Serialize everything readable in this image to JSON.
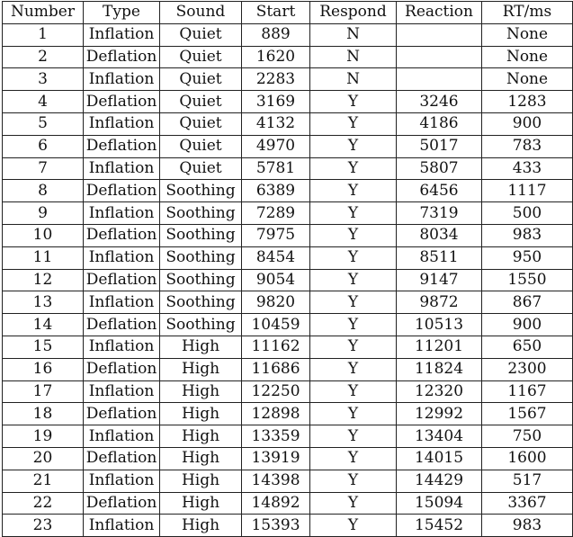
{
  "table": {
    "columns": [
      "Number",
      "Type",
      "Sound",
      "Start",
      "Respond",
      "Reaction",
      "RT/ms"
    ],
    "rows": [
      [
        "1",
        "Inflation",
        "Quiet",
        "889",
        "N",
        "",
        "None"
      ],
      [
        "2",
        "Deflation",
        "Quiet",
        "1620",
        "N",
        "",
        "None"
      ],
      [
        "3",
        "Inflation",
        "Quiet",
        "2283",
        "N",
        "",
        "None"
      ],
      [
        "4",
        "Deflation",
        "Quiet",
        "3169",
        "Y",
        "3246",
        "1283"
      ],
      [
        "5",
        "Inflation",
        "Quiet",
        "4132",
        "Y",
        "4186",
        "900"
      ],
      [
        "6",
        "Deflation",
        "Quiet",
        "4970",
        "Y",
        "5017",
        "783"
      ],
      [
        "7",
        "Inflation",
        "Quiet",
        "5781",
        "Y",
        "5807",
        "433"
      ],
      [
        "8",
        "Deflation",
        "Soothing",
        "6389",
        "Y",
        "6456",
        "1117"
      ],
      [
        "9",
        "Inflation",
        "Soothing",
        "7289",
        "Y",
        "7319",
        "500"
      ],
      [
        "10",
        "Deflation",
        "Soothing",
        "7975",
        "Y",
        "8034",
        "983"
      ],
      [
        "11",
        "Inflation",
        "Soothing",
        "8454",
        "Y",
        "8511",
        "950"
      ],
      [
        "12",
        "Deflation",
        "Soothing",
        "9054",
        "Y",
        "9147",
        "1550"
      ],
      [
        "13",
        "Inflation",
        "Soothing",
        "9820",
        "Y",
        "9872",
        "867"
      ],
      [
        "14",
        "Deflation",
        "Soothing",
        "10459",
        "Y",
        "10513",
        "900"
      ],
      [
        "15",
        "Inflation",
        "High",
        "11162",
        "Y",
        "11201",
        "650"
      ],
      [
        "16",
        "Deflation",
        "High",
        "11686",
        "Y",
        "11824",
        "2300"
      ],
      [
        "17",
        "Inflation",
        "High",
        "12250",
        "Y",
        "12320",
        "1167"
      ],
      [
        "18",
        "Deflation",
        "High",
        "12898",
        "Y",
        "12992",
        "1567"
      ],
      [
        "19",
        "Inflation",
        "High",
        "13359",
        "Y",
        "13404",
        "750"
      ],
      [
        "20",
        "Deflation",
        "High",
        "13919",
        "Y",
        "14015",
        "1600"
      ],
      [
        "21",
        "Inflation",
        "High",
        "14398",
        "Y",
        "14429",
        "517"
      ],
      [
        "22",
        "Deflation",
        "High",
        "14892",
        "Y",
        "15094",
        "3367"
      ],
      [
        "23",
        "Inflation",
        "High",
        "15393",
        "Y",
        "15452",
        "983"
      ]
    ]
  }
}
